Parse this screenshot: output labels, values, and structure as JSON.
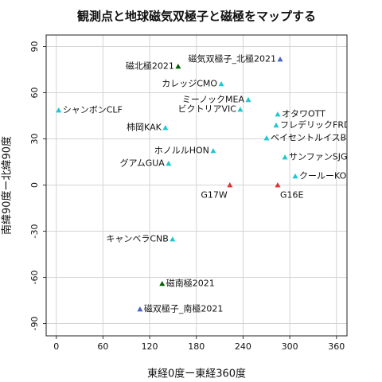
{
  "chart_data": {
    "type": "scatter",
    "title": "観測点と地球磁気双極子と磁極をマップする",
    "x_label": "東経0度ー東経360度",
    "y_label": "南緯90度ー北緯90度",
    "xlim": [
      -13,
      373.5
    ],
    "ylim": [
      -98,
      97.5
    ],
    "xticks": [
      0,
      60,
      120,
      180,
      240,
      300,
      360
    ],
    "yticks": [
      -90,
      -60,
      -30,
      0,
      30,
      60,
      90
    ],
    "grid": true,
    "points": [
      {
        "label": "磁気双極子_北極2021",
        "x": 287.6,
        "y": 81.7,
        "color": "#4a64c8"
      },
      {
        "label": "磁北極2021",
        "x": 156.6,
        "y": 77.1,
        "color": "#006400"
      },
      {
        "label": "カレッジCMO",
        "x": 212,
        "y": 65.7,
        "color": "#1ec8d2"
      },
      {
        "label": "ミーノックMEA",
        "x": 246.7,
        "y": 55.4,
        "color": "#1ec8d2"
      },
      {
        "label": "ビクトリアVIC",
        "x": 236.4,
        "y": 49.1,
        "color": "#1ec8d2"
      },
      {
        "label": "シャンボンCLF",
        "x": 3.1,
        "y": 48.6,
        "color": "#1ec8d2"
      },
      {
        "label": "オタワOTT",
        "x": 284.5,
        "y": 46,
        "color": "#1ec8d2"
      },
      {
        "label": "フレデリックFRD",
        "x": 282.5,
        "y": 38.8,
        "color": "#1ec8d2"
      },
      {
        "label": "柿岡KAK",
        "x": 140.2,
        "y": 37.2,
        "color": "#1ec8d2"
      },
      {
        "label": "ベイセントルイスBSL",
        "x": 270.2,
        "y": 30.5,
        "color": "#1ec8d2"
      },
      {
        "label": "ホノルルHON",
        "x": 201.6,
        "y": 22.2,
        "color": "#1ec8d2"
      },
      {
        "label": "サンファンSJG",
        "x": 293.8,
        "y": 18.1,
        "color": "#1ec8d2"
      },
      {
        "label": "グアムGUA",
        "x": 144.3,
        "y": 14,
        "color": "#1ec8d2"
      },
      {
        "label": "クールーKOU",
        "x": 307,
        "y": 5.7,
        "color": "#1ec8d2"
      },
      {
        "label": "G17W",
        "x": 223,
        "y": 0,
        "color": "#e03232"
      },
      {
        "label": "G16E",
        "x": 284.5,
        "y": 0,
        "color": "#e03232"
      },
      {
        "label": "キャンベラCNB",
        "x": 149.4,
        "y": -35.2,
        "color": "#1ec8d2"
      },
      {
        "label": "磁南極2021",
        "x": 136,
        "y": -64.1,
        "color": "#006400"
      },
      {
        "label": "磁双極子_南極2021",
        "x": 107.5,
        "y": -80.7,
        "color": "#4a64c8"
      }
    ]
  }
}
